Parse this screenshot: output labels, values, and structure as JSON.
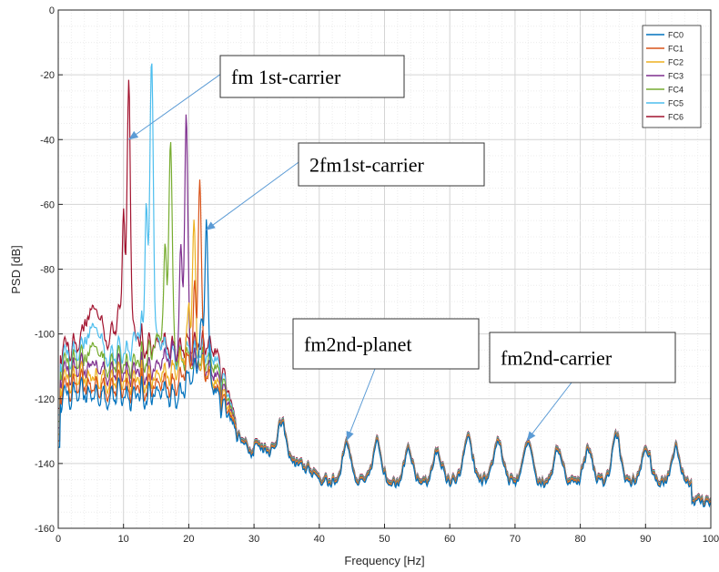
{
  "chart_data": {
    "type": "line",
    "xlabel": "Frequency [Hz]",
    "ylabel": "PSD [dB]",
    "xlim": [
      0,
      100
    ],
    "ylim": [
      -160,
      0
    ],
    "xticks": [
      "0",
      "10",
      "20",
      "30",
      "40",
      "50",
      "60",
      "70",
      "80",
      "90",
      "100"
    ],
    "yticks": [
      "0",
      "-20",
      "-40",
      "-60",
      "-80",
      "-100",
      "-120",
      "-140",
      "-160"
    ],
    "grid": true,
    "minor_grid": true,
    "legend_position": "top-right",
    "series": [
      {
        "name": "FC0",
        "color": "#0072BD",
        "peak_x": 22.7,
        "peak_y": -66,
        "floor": -128
      },
      {
        "name": "FC1",
        "color": "#D95319",
        "peak_x": 21.7,
        "peak_y": -53,
        "floor": -127
      },
      {
        "name": "FC2",
        "color": "#EDB120",
        "peak_x": 20.8,
        "peak_y": -66,
        "floor": -126
      },
      {
        "name": "FC3",
        "color": "#7E2F8E",
        "peak_x": 19.6,
        "peak_y": -34,
        "floor": -125
      },
      {
        "name": "FC4",
        "color": "#77AC30",
        "peak_x": 17.2,
        "peak_y": -38,
        "floor": -122
      },
      {
        "name": "FC5",
        "color": "#4DBEEE",
        "peak_x": 14.3,
        "peak_y": -13,
        "floor": -118
      },
      {
        "name": "FC6",
        "color": "#A2142F",
        "peak_x": 10.8,
        "peak_y": -21,
        "floor": -113
      }
    ],
    "common_peaks_x": [
      34.2,
      44.2,
      48.9,
      53.6,
      58.1,
      62.8,
      67.4,
      72.0,
      76.6,
      81.2,
      85.5,
      90.1,
      94.6,
      99.1
    ],
    "common_peaks_y": [
      -128,
      -134,
      -134,
      -137,
      -137,
      -132,
      -133,
      -133,
      -136,
      -136,
      -132,
      -136,
      -136,
      -142
    ],
    "annotations": [
      {
        "text": "fm 1st-carrier",
        "target": [
          10.8,
          -40
        ]
      },
      {
        "text": "2fm1st-carrier",
        "target": [
          22.6,
          -68
        ]
      },
      {
        "text": "fm2nd-planet",
        "target": [
          44.2,
          -133
        ]
      },
      {
        "text": "fm2nd-carrier",
        "target": [
          71.8,
          -133
        ]
      }
    ]
  }
}
